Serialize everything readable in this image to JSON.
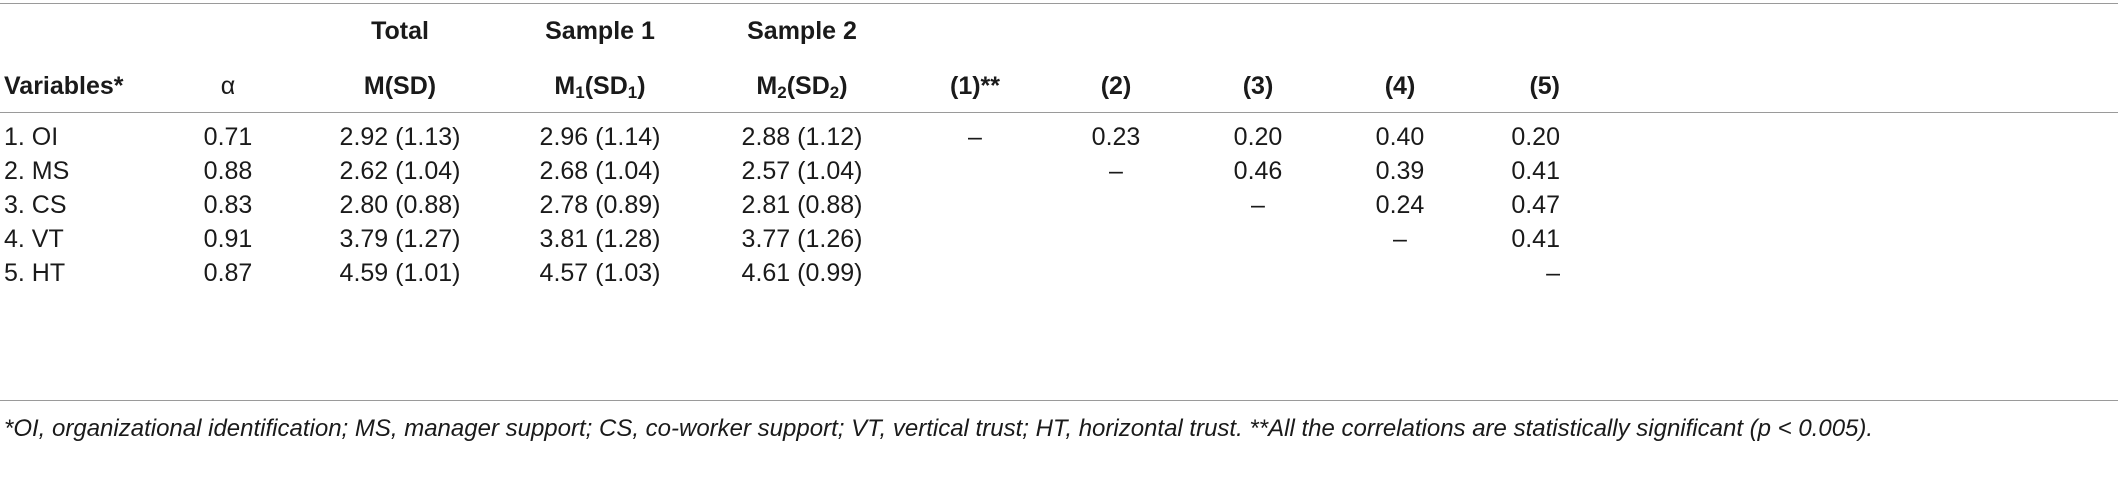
{
  "group_headers": {
    "total": "Total",
    "sample1": "Sample 1",
    "sample2": "Sample 2"
  },
  "column_headers": {
    "variables": "Variables*",
    "alpha": "α",
    "msd": "M(SD)",
    "m1_base": "M",
    "m1_sub": "1",
    "sd1_base": "(SD",
    "sd1_sub": "1",
    "m2_base": "M",
    "m2_sub": "2",
    "sd2_base": "(SD",
    "sd2_sub": "2",
    "close": ")",
    "c1": "(1)**",
    "c2": "(2)",
    "c3": "(3)",
    "c4": "(4)",
    "c5": "(5)"
  },
  "rows": [
    {
      "variable": "1. OI",
      "alpha": "0.71",
      "total": "2.92 (1.13)",
      "s1": "2.96 (1.14)",
      "s2": "2.88 (1.12)",
      "c1": "–",
      "c2": "0.23",
      "c3": "0.20",
      "c4": "0.40",
      "c5": "0.20"
    },
    {
      "variable": "2. MS",
      "alpha": "0.88",
      "total": "2.62 (1.04)",
      "s1": "2.68 (1.04)",
      "s2": "2.57 (1.04)",
      "c1": "",
      "c2": "–",
      "c3": "0.46",
      "c4": "0.39",
      "c5": "0.41"
    },
    {
      "variable": "3. CS",
      "alpha": "0.83",
      "total": "2.80 (0.88)",
      "s1": "2.78 (0.89)",
      "s2": "2.81 (0.88)",
      "c1": "",
      "c2": "",
      "c3": "–",
      "c4": "0.24",
      "c5": "0.47"
    },
    {
      "variable": "4. VT",
      "alpha": "0.91",
      "total": "3.79 (1.27)",
      "s1": "3.81 (1.28)",
      "s2": "3.77 (1.26)",
      "c1": "",
      "c2": "",
      "c3": "",
      "c4": "–",
      "c5": "0.41"
    },
    {
      "variable": "5. HT",
      "alpha": "0.87",
      "total": "4.59 (1.01)",
      "s1": "4.57 (1.03)",
      "s2": "4.61 (0.99)",
      "c1": "",
      "c2": "",
      "c3": "",
      "c4": "",
      "c5": "–"
    }
  ],
  "footnote": "*OI, organizational identification; MS, manager support; CS, co-worker support; VT, vertical trust; HT, horizontal trust. **All the correlations are statistically significant (p < 0.005)."
}
